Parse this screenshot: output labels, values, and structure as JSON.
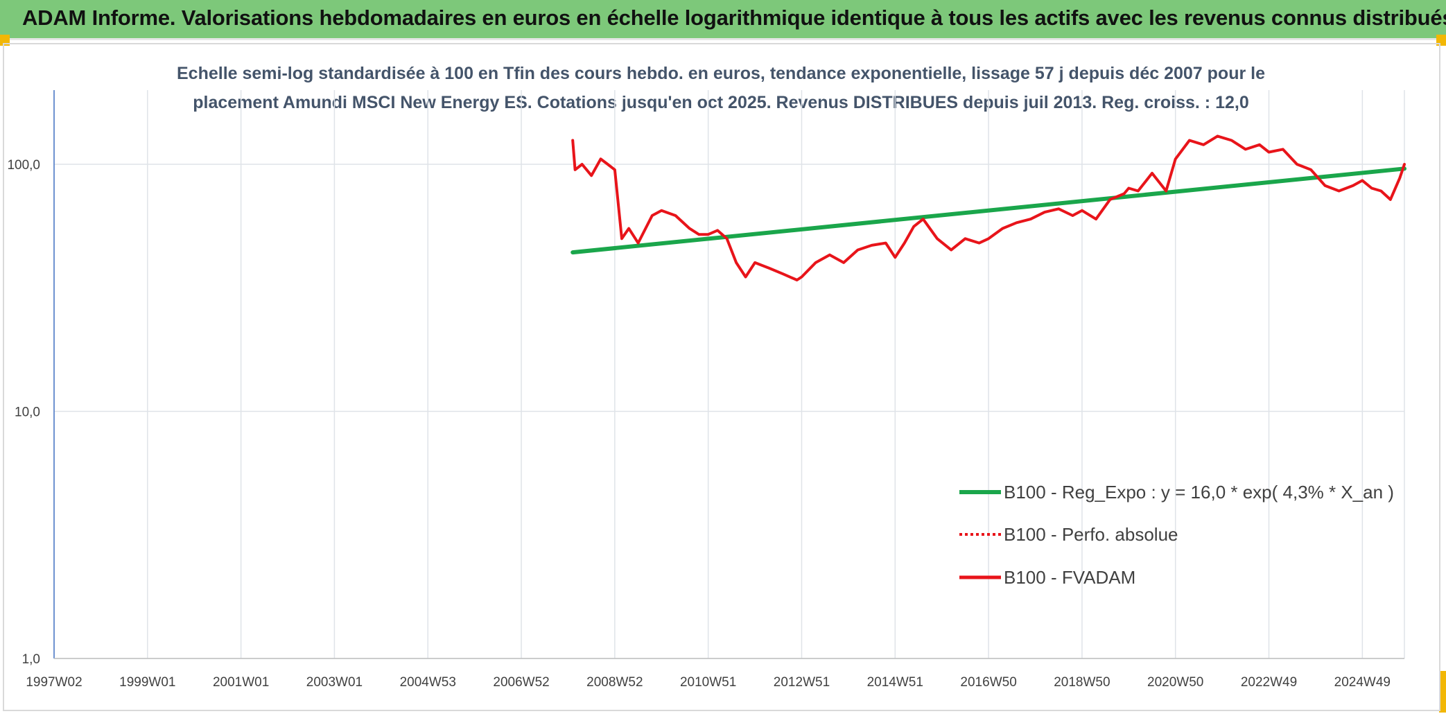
{
  "banner": {
    "title": "ADAM Informe. Valorisations hebdomadaires en euros en échelle logarithmique identique à tous les actifs avec les revenus connus distribués"
  },
  "colors": {
    "banner": "#7dc87a",
    "trend": "#1aa64b",
    "fvadam": "#e8141a",
    "perf": "#e8141a",
    "corner": "#f2b705"
  },
  "chart_data": {
    "type": "line",
    "title_line1": "Echelle semi-log standardisée à 100 en Tfin des cours hebdo. en euros, tendance exponentielle, lissage 57 j depuis déc 2007 pour le",
    "title_line2": "placement Amundi MSCI New Energy ES. Cotations jusqu'en oct 2025. Revenus DISTRIBUES depuis juil 2013. Reg. croiss. : 12,0",
    "y_scale": "log",
    "ylim": [
      1,
      150
    ],
    "y_ticks": [
      {
        "value": 1,
        "label": "1,0"
      },
      {
        "value": 10,
        "label": "10,0"
      },
      {
        "value": 100,
        "label": "100,0"
      }
    ],
    "xlim": [
      1997.0,
      2025.9
    ],
    "x_ticks": [
      {
        "value": 1997.0,
        "label": "1997W02"
      },
      {
        "value": 1999.0,
        "label": "1999W01"
      },
      {
        "value": 2001.0,
        "label": "2001W01"
      },
      {
        "value": 2003.0,
        "label": "2003W01"
      },
      {
        "value": 2005.0,
        "label": "2004W53"
      },
      {
        "value": 2007.0,
        "label": "2006W52"
      },
      {
        "value": 2009.0,
        "label": "2008W52"
      },
      {
        "value": 2011.0,
        "label": "2010W51"
      },
      {
        "value": 2013.0,
        "label": "2012W51"
      },
      {
        "value": 2015.0,
        "label": "2014W51"
      },
      {
        "value": 2017.0,
        "label": "2016W50"
      },
      {
        "value": 2019.0,
        "label": "2018W50"
      },
      {
        "value": 2021.0,
        "label": "2020W50"
      },
      {
        "value": 2023.0,
        "label": "2022W49"
      },
      {
        "value": 2025.0,
        "label": "2024W49"
      }
    ],
    "legend_position": "bottom-right",
    "series": [
      {
        "name": "B100 - Reg_Expo : y = 16,0 * exp( 4,3% *  X_an )",
        "style": "solid-thick",
        "x": [
          2008.1,
          2025.9
        ],
        "y": [
          44,
          96
        ]
      },
      {
        "name": "B100 - Perfo. absolue",
        "style": "dotted",
        "x": [],
        "y": []
      },
      {
        "name": "B100 - FVADAM",
        "style": "solid",
        "x": [
          2008.1,
          2008.15,
          2008.3,
          2008.5,
          2008.7,
          2008.85,
          2009.0,
          2009.15,
          2009.3,
          2009.5,
          2009.8,
          2010.0,
          2010.3,
          2010.6,
          2010.8,
          2011.0,
          2011.2,
          2011.4,
          2011.6,
          2011.8,
          2012.0,
          2012.3,
          2012.6,
          2012.9,
          2013.0,
          2013.3,
          2013.6,
          2013.9,
          2014.2,
          2014.5,
          2014.8,
          2015.0,
          2015.2,
          2015.4,
          2015.6,
          2015.9,
          2016.2,
          2016.5,
          2016.8,
          2017.0,
          2017.3,
          2017.6,
          2017.9,
          2018.2,
          2018.5,
          2018.8,
          2019.0,
          2019.3,
          2019.6,
          2019.9,
          2020.0,
          2020.2,
          2020.5,
          2020.8,
          2021.0,
          2021.3,
          2021.6,
          2021.9,
          2022.2,
          2022.5,
          2022.8,
          2023.0,
          2023.3,
          2023.6,
          2023.9,
          2024.2,
          2024.5,
          2024.8,
          2025.0,
          2025.2,
          2025.4,
          2025.6,
          2025.8,
          2025.9
        ],
        "y": [
          125,
          95,
          100,
          90,
          105,
          100,
          95,
          50,
          55,
          48,
          62,
          65,
          62,
          55,
          52,
          52,
          54,
          50,
          40,
          35,
          40,
          38,
          36,
          34,
          35,
          40,
          43,
          40,
          45,
          47,
          48,
          42,
          48,
          56,
          60,
          50,
          45,
          50,
          48,
          50,
          55,
          58,
          60,
          64,
          66,
          62,
          65,
          60,
          72,
          76,
          80,
          78,
          92,
          78,
          105,
          125,
          120,
          130,
          125,
          115,
          120,
          112,
          115,
          100,
          95,
          82,
          78,
          82,
          86,
          80,
          78,
          72,
          88,
          100
        ]
      }
    ]
  }
}
